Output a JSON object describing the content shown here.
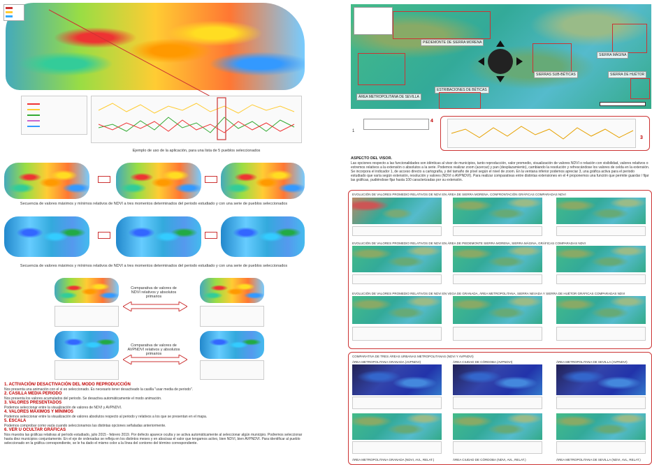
{
  "left": {
    "caption_main": "Ejemplo de uso de la aplicación, para una lista de 5 pueblos seleccionados",
    "caption_seq1": "Secuencia de valores máximos y mínimos relativos de NDVI a tres momentos determinados del periodo estudiado y con una serie de pueblos seleccionados",
    "caption_seq2": "Secuencia de valores máximos y mínimos relativos de NDVI a tres momentos determinados del periodo estudiado y con una serie de pueblos seleccionados",
    "compare1": "Comparativa de valores de NDVI relativos y absolutos primarios",
    "compare2": "Comparativa de valores de AVPNDVI relativos y absolutos primarios",
    "instructions": [
      {
        "h": "1. ACTIVACIÓN/ DESACTIVACIÓN DEL MODO REPRODUCCIÓN",
        "t": "Nos presenta una animación con el vi eo seleccionado. Es necesario tener desactivado la casilla \"usar media de periodo\"."
      },
      {
        "h": "2. CASILLA MEDIA PERIODO",
        "t": "Nos presenta los valores acumulados del periodo. Se desactiva automáticamente el modo animación."
      },
      {
        "h": "3. VALORES PRESENTADOS",
        "t": "Podemos seleccionar entre la visualización de valores de NDVI y AVPNDVI."
      },
      {
        "h": "4. VALORES MÁXIMOS Y MÍNIMOS",
        "t": "Podemos seleccionar entre la visualización de valores absolutos respecto al periodo y relativos a los que se presentan en el mapa."
      },
      {
        "h": "5. ESCALA",
        "t": "Podemos comprobar como varía cuando seleccionamos las distintas opciones señaladas anteriormente."
      },
      {
        "h": "6. VER U OCULTAR GRÁFICAS",
        "t": "Nos muestra las gráficas relativas al período estudiado, julio 2015 - febrero 2019. Por defecto aparece oculta y se activa automáticamente al seleccionar algún municipio. Podremos seleccionar hasta diez municipios conjuntamente. En el eje de ordenadas se refleja en los distintos meses y en abscisas el valor que tengamos activo, bien NDVI, bien AVPNDVI. Para identificar al pueblo seleccionado en la gráfica correspondiente, se le ha dado el mismo color a la línea del contorno del término correspondiente."
      }
    ]
  },
  "right": {
    "map_labels": {
      "sierra_morena": "PIEDEMONTE DE SIERRA MORENA",
      "sierra_magina": "SIERRA MÁGINA",
      "subbeticas": "SIERRAS SUB-BÉTICAS",
      "huetor": "SIERRA DE HUÉTOR",
      "metro_sevilla": "ÁREA METROPOLITANA DE SEVILLA",
      "estribaciones": "ESTRIBACIONES DE BÉTICAS"
    },
    "marker_4": "4",
    "marker_3": "3",
    "marker_1": "1",
    "aspect_title": "ASPECTO DEL VISOR.",
    "aspect_text": "Las opciones respecto a las funcionalidades son idénticas al visor de municipios, tanto reproducción, valor promedio, visualización de valores NDVI o relación con visibilidad, valores relativos o extremos relativos a la extensión o absolutos a la serie. Podemos realizar zoom (acercar) y pan (desplazamiento), cambiando la resolución y refrescándose los valores de celda en la extensión. Se incorpora el indicador 1, de acceso directo a cartografía, y del tamaño de píxel según el nivel de zoom. En la ventana inferior podemos apreciar 3, una gráfica activa para el periodo estudiado que varía según extensión, resolución y valores (NDVI o AVPNDVI). Para realizar comparativas entre distintas extensiones en el 4 proponemos una función que permite guardar / fijar las gráficas, pudiéndose fijar hasta 100 caracterizadas por su extensión.",
    "box1_title": "EVOLUCIÓN DE VALORES PROMEDIO RELATIVOS DE NDVI EN ÁREA DE SIERRA MORENA. CONFRONTACIÓN GRÁFICAS COMPARADAS NDVI",
    "box1_row2": "EVOLUCIÓN DE VALORES PROMEDIO RELATIVOS DE NDVI EN ÁREA DE PIEDEMONTE SIERRA MORENA, SIERRA MÁGINA, GRÁFICAS COMPARADAS NDVI",
    "box1_row3": "EVOLUCIÓN DE VALORES PROMEDIO RELATIVOS DE NDVI EN VEGA DE GRANADA, ÁREA METROPOLITANA, SIERRA NEVADA Y SIERRA DE HUÉTOR GRÁFICAS COMPARADAS NDVI",
    "box2_title": "COMPARATIVA DE TRES ÁREAS URBANAS METROPOLITANAS (NDVI Y AVPNDVI)",
    "box2_c1": "ÁREA METROPOLITANA GRANADA (AVPNDVI)",
    "box2_c2": "ÁREA CIUDAD DE CÓRDOBA (AVPNDVI)",
    "box2_c3": "ÁREA METROPOLITANA DE SEVILLA (AVPNDVI)",
    "box2_f1": "ÁREA METROPOLITANA GRANADA (NDVI, AVL, RELAT.)",
    "box2_f2": "ÁREA CIUDAD DE CÓRDOBA (NDVI, AVL, RELAT.)",
    "box2_f3": "ÁREA METROPOLITANA DE SEVILLA (NDVI, AVL, RELAT.)"
  },
  "colors": {
    "accent_red": "#c00000",
    "frame_red": "#cc3333"
  }
}
